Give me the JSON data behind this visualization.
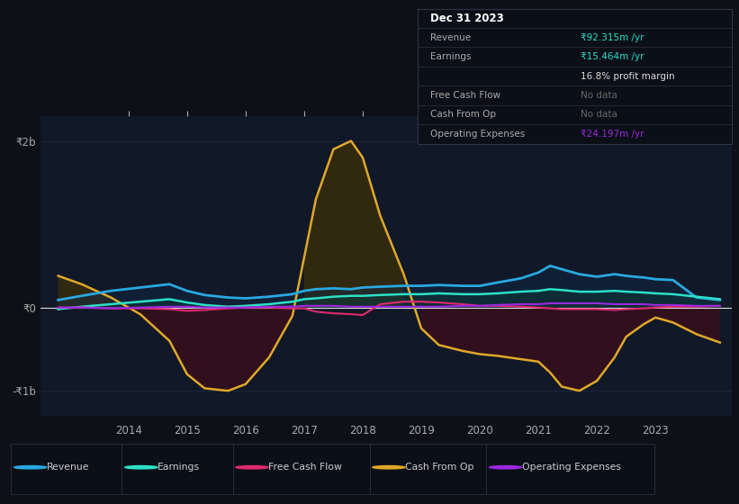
{
  "bg_color": "#0d1117",
  "plot_bg_color": "#111827",
  "ylim": [
    -1.3,
    2.3
  ],
  "xlim": [
    2012.5,
    2024.3
  ],
  "xticks": [
    2014,
    2015,
    2016,
    2017,
    2018,
    2019,
    2020,
    2021,
    2022,
    2023
  ],
  "revenue_color": "#29a8e0",
  "earnings_color": "#2de0c8",
  "fcf_color": "#e0296e",
  "cashop_color": "#e0a829",
  "opex_color": "#9b29e0",
  "legend_labels": [
    "Revenue",
    "Earnings",
    "Free Cash Flow",
    "Cash From Op",
    "Operating Expenses"
  ],
  "legend_colors": [
    "#29a8e0",
    "#2de0c8",
    "#e0296e",
    "#e0a829",
    "#9b29e0"
  ],
  "info_title": "Dec 31 2023",
  "info_rows": [
    [
      "Revenue",
      "₹92.315m /yr",
      "#aaaaaa",
      "#2de0c8"
    ],
    [
      "Earnings",
      "₹15.464m /yr",
      "#aaaaaa",
      "#2de0c8"
    ],
    [
      "",
      "16.8% profit margin",
      "#aaaaaa",
      "#dddddd"
    ],
    [
      "Free Cash Flow",
      "No data",
      "#aaaaaa",
      "#666666"
    ],
    [
      "Cash From Op",
      "No data",
      "#aaaaaa",
      "#666666"
    ],
    [
      "Operating Expenses",
      "₹24.197m /yr",
      "#aaaaaa",
      "#9b29e0"
    ]
  ],
  "years": [
    2012.8,
    2013.2,
    2013.7,
    2014.2,
    2014.7,
    2015.0,
    2015.3,
    2015.7,
    2016.0,
    2016.4,
    2016.8,
    2017.0,
    2017.2,
    2017.5,
    2017.8,
    2018.0,
    2018.3,
    2018.7,
    2019.0,
    2019.3,
    2019.7,
    2020.0,
    2020.3,
    2020.7,
    2021.0,
    2021.2,
    2021.4,
    2021.7,
    2022.0,
    2022.3,
    2022.5,
    2022.8,
    2023.0,
    2023.3,
    2023.7,
    2024.1
  ],
  "revenue": [
    0.09,
    0.14,
    0.2,
    0.24,
    0.28,
    0.2,
    0.15,
    0.12,
    0.11,
    0.13,
    0.16,
    0.2,
    0.22,
    0.23,
    0.22,
    0.24,
    0.25,
    0.26,
    0.26,
    0.27,
    0.26,
    0.26,
    0.3,
    0.35,
    0.42,
    0.5,
    0.46,
    0.4,
    0.37,
    0.4,
    0.38,
    0.36,
    0.34,
    0.33,
    0.12,
    0.09
  ],
  "earnings": [
    -0.02,
    0.01,
    0.04,
    0.07,
    0.1,
    0.06,
    0.03,
    0.01,
    0.02,
    0.04,
    0.07,
    0.1,
    0.11,
    0.13,
    0.14,
    0.14,
    0.15,
    0.16,
    0.16,
    0.17,
    0.16,
    0.16,
    0.17,
    0.19,
    0.2,
    0.22,
    0.21,
    0.19,
    0.19,
    0.2,
    0.19,
    0.18,
    0.17,
    0.16,
    0.13,
    0.1
  ],
  "fcf": [
    0.0,
    0.0,
    -0.01,
    -0.01,
    -0.02,
    -0.04,
    -0.03,
    -0.01,
    0.0,
    0.0,
    -0.01,
    -0.01,
    -0.05,
    -0.07,
    -0.08,
    -0.09,
    0.04,
    0.07,
    0.07,
    0.06,
    0.04,
    0.02,
    0.02,
    0.01,
    0.0,
    -0.01,
    -0.02,
    -0.02,
    -0.02,
    -0.03,
    -0.02,
    -0.01,
    0.0,
    0.01,
    0.01,
    0.02
  ],
  "cashop": [
    0.38,
    0.28,
    0.12,
    -0.08,
    -0.4,
    -0.8,
    -0.97,
    -1.0,
    -0.92,
    -0.6,
    -0.1,
    0.6,
    1.3,
    1.9,
    2.0,
    1.8,
    1.1,
    0.4,
    -0.25,
    -0.45,
    -0.52,
    -0.56,
    -0.58,
    -0.62,
    -0.65,
    -0.78,
    -0.95,
    -1.0,
    -0.88,
    -0.6,
    -0.35,
    -0.2,
    -0.12,
    -0.18,
    -0.32,
    -0.42
  ],
  "opex": [
    0.0,
    0.0,
    -0.01,
    0.0,
    0.01,
    0.01,
    0.0,
    0.0,
    0.0,
    0.01,
    0.01,
    0.02,
    0.02,
    0.02,
    0.01,
    0.01,
    0.01,
    0.01,
    0.01,
    0.01,
    0.02,
    0.02,
    0.03,
    0.04,
    0.04,
    0.05,
    0.05,
    0.05,
    0.05,
    0.04,
    0.04,
    0.04,
    0.03,
    0.03,
    0.02,
    0.02
  ]
}
